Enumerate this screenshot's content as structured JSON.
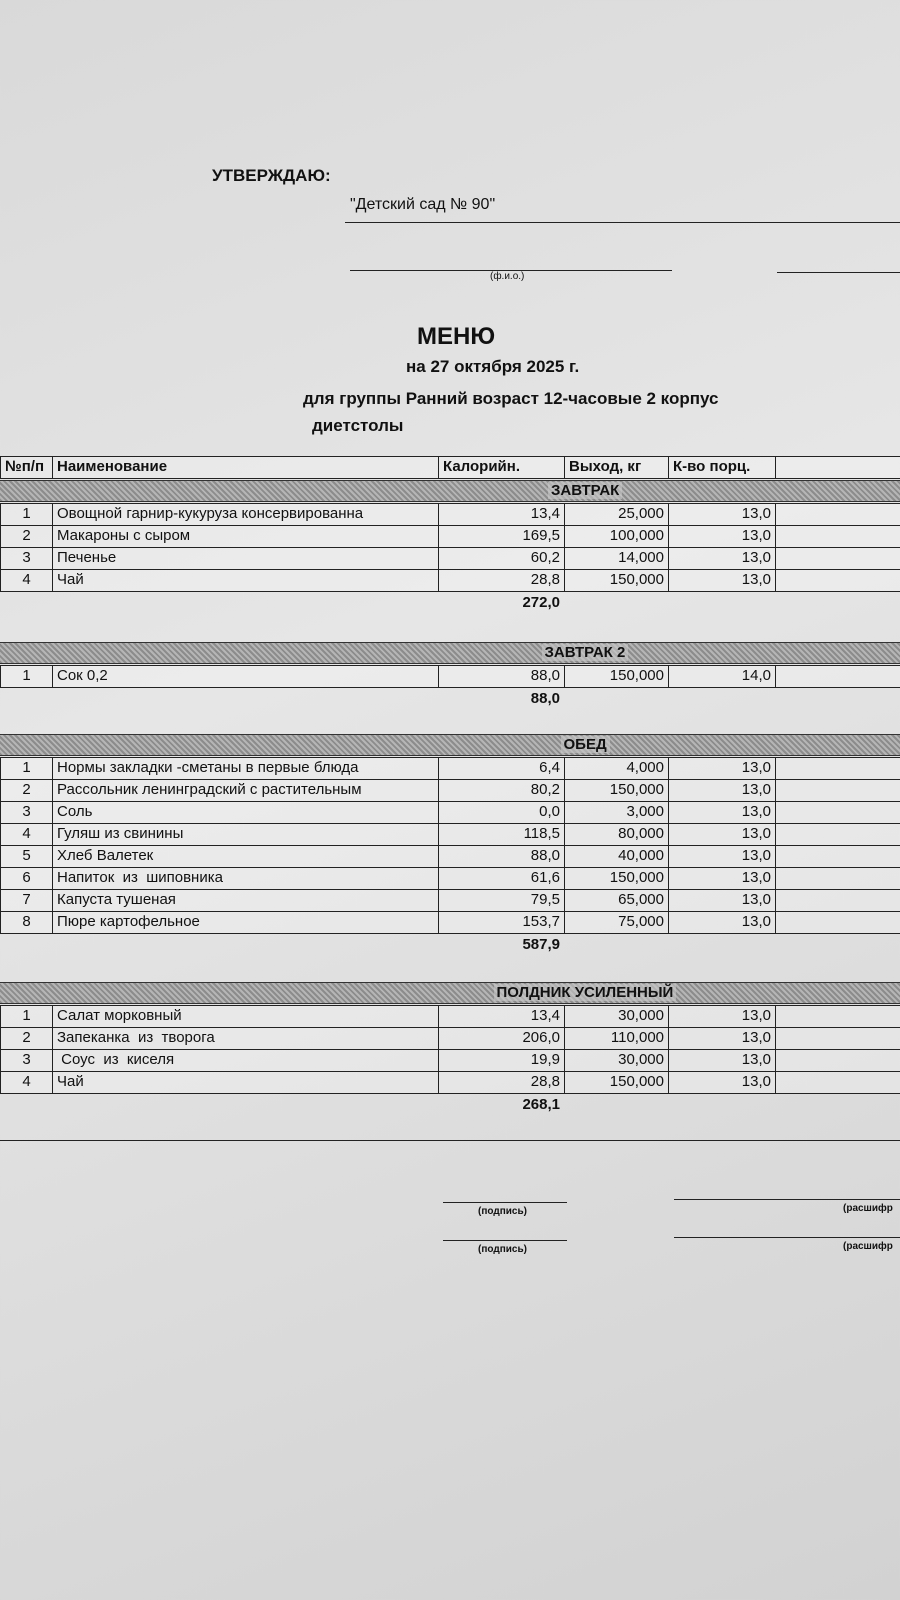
{
  "header": {
    "approval": "УТВЕРЖДАЮ:",
    "organization": "\"Детский сад № 90\"",
    "name_caption": "(ф.и.о.)"
  },
  "title": "МЕНЮ",
  "date": "на 27 октября 2025 г.",
  "group": "для группы Ранний возраст 12-часовые 2 корпус",
  "diet": "диетстолы",
  "table": {
    "columns": [
      "№п/п",
      "Наименование",
      "Калорийн.",
      "Выход, кг",
      "К-во порц."
    ],
    "sections": [
      {
        "name": "ЗАВТРАК",
        "rows": [
          [
            "1",
            "Овощной гарнир-кукуруза консервированна",
            "13,4",
            "25,000",
            "13,0"
          ],
          [
            "2",
            "Макароны с сыром",
            "169,5",
            "100,000",
            "13,0"
          ],
          [
            "3",
            "Печенье",
            "60,2",
            "14,000",
            "13,0"
          ],
          [
            "4",
            "Чай",
            "28,8",
            "150,000",
            "13,0"
          ]
        ],
        "total": "272,0"
      },
      {
        "name": "ЗАВТРАК 2",
        "rows": [
          [
            "1",
            "Сок 0,2",
            "88,0",
            "150,000",
            "14,0"
          ]
        ],
        "total": "88,0"
      },
      {
        "name": "ОБЕД",
        "rows": [
          [
            "1",
            "Нормы закладки -сметаны в первые блюда",
            "6,4",
            "4,000",
            "13,0"
          ],
          [
            "2",
            "Рассольник ленинградский с растительным",
            "80,2",
            "150,000",
            "13,0"
          ],
          [
            "3",
            "Соль",
            "0,0",
            "3,000",
            "13,0"
          ],
          [
            "4",
            "Гуляш из свинины",
            "118,5",
            "80,000",
            "13,0"
          ],
          [
            "5",
            "Хлеб Валетек",
            "88,0",
            "40,000",
            "13,0"
          ],
          [
            "6",
            "Напиток  из  шиповника",
            "61,6",
            "150,000",
            "13,0"
          ],
          [
            "7",
            "Капуста тушеная",
            "79,5",
            "65,000",
            "13,0"
          ],
          [
            "8",
            "Пюре картофельное",
            "153,7",
            "75,000",
            "13,0"
          ]
        ],
        "total": "587,9"
      },
      {
        "name": "ПОЛДНИК УСИЛЕННЫЙ",
        "rows": [
          [
            "1",
            "Салат морковный",
            "13,4",
            "30,000",
            "13,0"
          ],
          [
            "2",
            "Запеканка  из  творога",
            "206,0",
            "110,000",
            "13,0"
          ],
          [
            "3",
            " Соус  из  киселя",
            "19,9",
            "30,000",
            "13,0"
          ],
          [
            "4",
            "Чай",
            "28,8",
            "150,000",
            "13,0"
          ]
        ],
        "total": "268,1"
      }
    ]
  },
  "signatures": [
    {
      "left": "(подпись)",
      "right": "(расшифр"
    },
    {
      "left": "(подпись)",
      "right": "(расшифр"
    }
  ]
}
